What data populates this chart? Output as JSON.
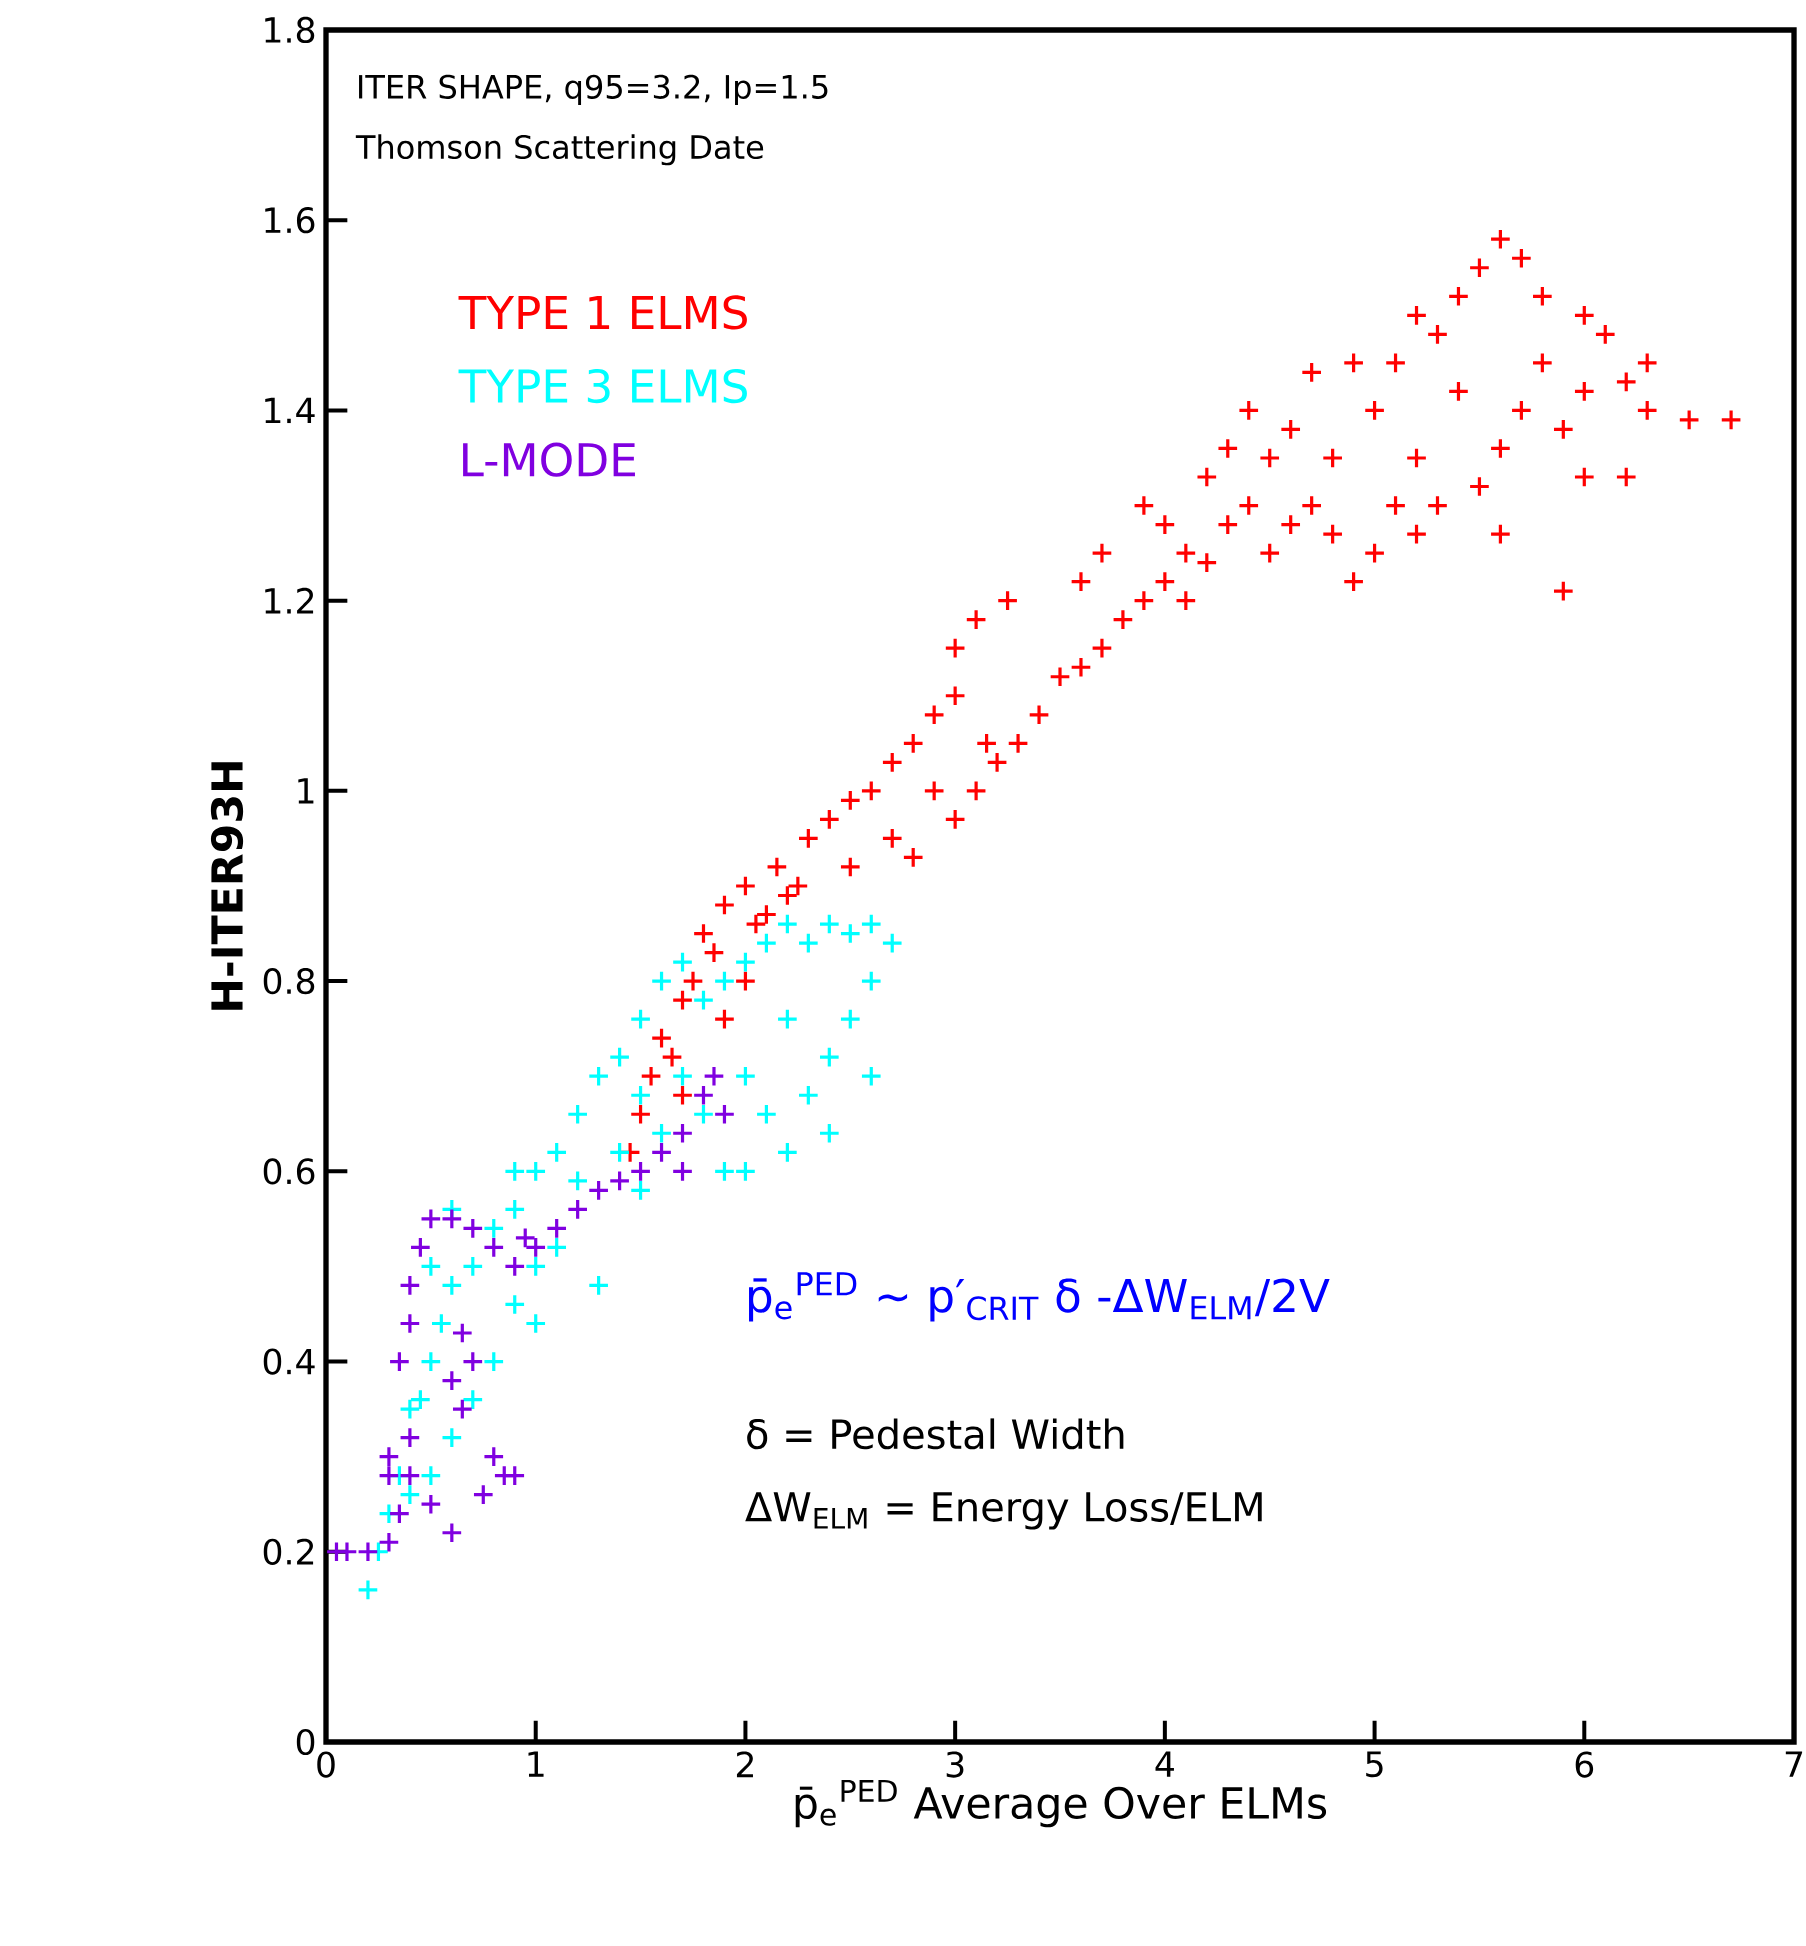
{
  "chart_data": {
    "type": "scatter",
    "xlabel": "p̄$_{e}$$^{PED}$ Average Over ELMs",
    "ylabel": "H-ITER93H",
    "annotations": [
      "ITER SHAPE, q95=3.2, Ip=1.5",
      "Thomson Scattering Date",
      "p̄$_{e}$$^{PED}$ ~ p′$_{CRIT}$ δ -ΔW$_{ELM}$/2V",
      "δ = Pedestal Width",
      "ΔW$_{ELM}$ = Energy Loss/ELM"
    ],
    "xlim": [
      0,
      7
    ],
    "ylim": [
      0,
      1.8
    ],
    "xticks": [
      0,
      1,
      2,
      3,
      4,
      5,
      6,
      7
    ],
    "yticks": [
      0,
      0.2,
      0.4,
      0.6,
      0.8,
      1,
      1.2,
      1.4,
      1.6,
      1.8
    ],
    "marker": "cross",
    "legend": "top left",
    "series": [
      {
        "name": "TYPE 1 ELMS",
        "color": "#ff0000",
        "x": [
          1.45,
          1.5,
          1.55,
          1.6,
          1.7,
          1.65,
          1.75,
          1.8,
          1.85,
          1.9,
          2.0,
          2.05,
          2.1,
          2.2,
          1.7,
          1.9,
          2.0,
          2.15,
          2.25,
          2.3,
          2.4,
          2.5,
          2.6,
          2.7,
          2.8,
          2.9,
          3.0,
          2.5,
          2.7,
          2.8,
          3.0,
          3.1,
          3.2,
          3.3,
          3.4,
          3.5,
          2.9,
          3.0,
          3.1,
          3.25,
          3.15,
          3.6,
          3.7,
          3.8,
          3.9,
          4.0,
          4.1,
          4.2,
          4.3,
          4.1,
          4.0,
          3.9,
          4.2,
          4.4,
          4.5,
          4.6,
          4.7,
          4.8,
          4.9,
          5.0,
          4.5,
          4.4,
          4.6,
          4.3,
          4.8,
          3.7,
          3.6,
          5.0,
          5.1,
          5.2,
          5.3,
          5.4,
          5.5,
          5.6,
          5.7,
          5.8,
          6.0,
          6.1,
          6.3,
          6.2,
          6.3,
          6.7,
          6.5,
          6.0,
          6.2,
          5.9,
          5.2,
          5.3,
          5.5,
          5.6,
          5.7,
          5.8,
          5.4,
          5.1,
          5.6,
          5.2,
          4.9,
          4.7,
          5.9,
          6.0
        ],
        "values": [
          0.62,
          0.66,
          0.7,
          0.74,
          0.78,
          0.72,
          0.8,
          0.85,
          0.83,
          0.88,
          0.9,
          0.86,
          0.87,
          0.89,
          0.68,
          0.76,
          0.8,
          0.92,
          0.9,
          0.95,
          0.97,
          0.99,
          1.0,
          1.03,
          1.05,
          1.08,
          1.1,
          0.92,
          0.95,
          0.93,
          0.97,
          1.0,
          1.03,
          1.05,
          1.08,
          1.12,
          1.0,
          1.15,
          1.18,
          1.2,
          1.05,
          1.13,
          1.15,
          1.18,
          1.2,
          1.22,
          1.25,
          1.24,
          1.28,
          1.2,
          1.28,
          1.3,
          1.33,
          1.3,
          1.25,
          1.28,
          1.3,
          1.27,
          1.22,
          1.25,
          1.35,
          1.4,
          1.38,
          1.36,
          1.35,
          1.25,
          1.22,
          1.4,
          1.45,
          1.5,
          1.48,
          1.52,
          1.55,
          1.58,
          1.56,
          1.52,
          1.5,
          1.48,
          1.45,
          1.43,
          1.4,
          1.39,
          1.39,
          1.33,
          1.33,
          1.21,
          1.35,
          1.3,
          1.32,
          1.36,
          1.4,
          1.45,
          1.42,
          1.3,
          1.27,
          1.27,
          1.45,
          1.44,
          1.38,
          1.42
        ]
      },
      {
        "name": "TYPE 3 ELMS",
        "color": "#00ffff",
        "x": [
          0.2,
          0.25,
          0.3,
          0.35,
          0.4,
          0.45,
          0.5,
          0.55,
          0.6,
          0.7,
          0.8,
          0.9,
          1.0,
          1.1,
          1.2,
          1.3,
          1.4,
          1.5,
          1.6,
          1.7,
          1.8,
          1.9,
          2.0,
          2.1,
          2.2,
          2.3,
          2.4,
          2.5,
          2.6,
          2.7,
          2.6,
          2.5,
          2.4,
          2.3,
          2.4,
          2.2,
          2.0,
          1.9,
          2.1,
          2.0,
          1.8,
          1.6,
          1.4,
          1.2,
          1.1,
          1.0,
          0.9,
          0.8,
          0.7,
          0.6,
          0.5,
          0.4,
          1.3,
          1.5,
          1.7,
          2.2,
          1.0,
          0.5,
          0.6,
          0.9,
          1.5,
          2.6
        ],
        "values": [
          0.16,
          0.2,
          0.24,
          0.28,
          0.35,
          0.36,
          0.4,
          0.44,
          0.48,
          0.5,
          0.54,
          0.56,
          0.6,
          0.62,
          0.66,
          0.7,
          0.72,
          0.76,
          0.8,
          0.82,
          0.78,
          0.8,
          0.82,
          0.84,
          0.86,
          0.84,
          0.86,
          0.85,
          0.86,
          0.84,
          0.8,
          0.76,
          0.72,
          0.68,
          0.64,
          0.62,
          0.6,
          0.6,
          0.66,
          0.7,
          0.66,
          0.64,
          0.62,
          0.59,
          0.52,
          0.5,
          0.46,
          0.4,
          0.36,
          0.32,
          0.28,
          0.26,
          0.48,
          0.58,
          0.7,
          0.76,
          0.44,
          0.5,
          0.56,
          0.6,
          0.68,
          0.7
        ]
      },
      {
        "name": "L-MODE",
        "color": "#8000e0",
        "x": [
          0.05,
          0.1,
          0.2,
          0.3,
          0.35,
          0.3,
          0.3,
          0.4,
          0.35,
          0.4,
          0.4,
          0.45,
          0.5,
          0.6,
          0.7,
          0.8,
          0.9,
          1.0,
          1.1,
          1.2,
          1.3,
          1.4,
          1.5,
          1.6,
          1.7,
          1.8,
          1.85,
          1.7,
          1.9,
          0.65,
          0.7,
          0.6,
          0.65,
          0.8,
          0.85,
          0.9,
          0.75,
          0.5,
          0.6,
          0.4,
          0.95
        ],
        "values": [
          0.2,
          0.2,
          0.2,
          0.21,
          0.24,
          0.28,
          0.3,
          0.32,
          0.4,
          0.44,
          0.48,
          0.52,
          0.55,
          0.55,
          0.54,
          0.52,
          0.5,
          0.52,
          0.54,
          0.56,
          0.58,
          0.59,
          0.6,
          0.62,
          0.64,
          0.68,
          0.7,
          0.6,
          0.66,
          0.43,
          0.4,
          0.38,
          0.35,
          0.3,
          0.28,
          0.28,
          0.26,
          0.25,
          0.22,
          0.28,
          0.53
        ]
      }
    ]
  }
}
